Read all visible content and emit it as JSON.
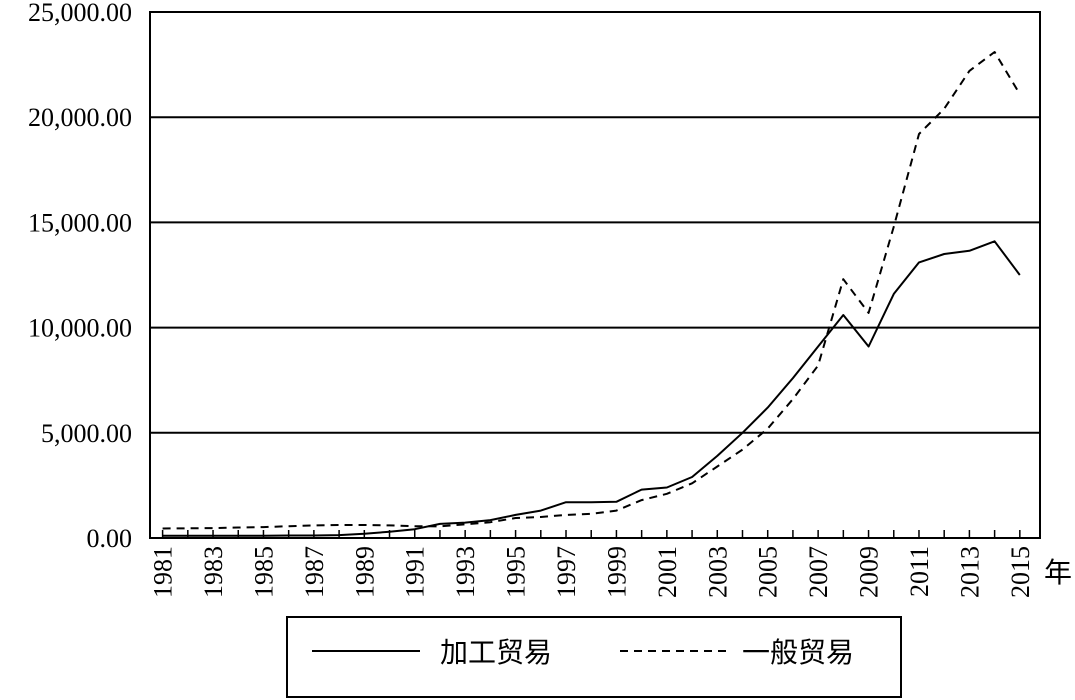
{
  "chart_data": {
    "type": "line",
    "title": "",
    "xlabel": "年",
    "ylabel": "",
    "ylim": [
      0,
      25000
    ],
    "y_ticks": [
      "0.00",
      "5,000.00",
      "10,000.00",
      "15,000.00",
      "20,000.00",
      "25,000.00"
    ],
    "x_tick_labels": [
      "1981",
      "1983",
      "1985",
      "1987",
      "1989",
      "1991",
      "1993",
      "1995",
      "1997",
      "1999",
      "2001",
      "2003",
      "2005",
      "2007",
      "2009",
      "2011",
      "2013",
      "2015"
    ],
    "grid": "horizontal",
    "legend_position": "bottom",
    "x": [
      1981,
      1982,
      1983,
      1984,
      1985,
      1986,
      1987,
      1988,
      1989,
      1990,
      1991,
      1992,
      1993,
      1994,
      1995,
      1996,
      1997,
      1998,
      1999,
      2000,
      2001,
      2002,
      2003,
      2004,
      2005,
      2006,
      2007,
      2008,
      2009,
      2010,
      2011,
      2012,
      2013,
      2014,
      2015
    ],
    "series": [
      {
        "name": "加工贸易",
        "style": "solid",
        "values": [
          110,
          110,
          110,
          110,
          110,
          120,
          120,
          140,
          200,
          300,
          420,
          670,
          730,
          850,
          1100,
          1300,
          1700,
          1700,
          1720,
          2300,
          2400,
          2900,
          3900,
          5000,
          6200,
          7600,
          9100,
          10600,
          9100,
          11600,
          13100,
          13500,
          13650,
          14100,
          12500
        ]
      },
      {
        "name": "一般贸易",
        "style": "dashed",
        "values": [
          450,
          460,
          470,
          500,
          520,
          560,
          600,
          620,
          620,
          600,
          560,
          550,
          650,
          750,
          950,
          1000,
          1100,
          1150,
          1300,
          1800,
          2100,
          2600,
          3400,
          4200,
          5200,
          6600,
          8200,
          12300,
          10700,
          14800,
          19200,
          20400,
          22200,
          23100,
          21100
        ]
      }
    ]
  }
}
